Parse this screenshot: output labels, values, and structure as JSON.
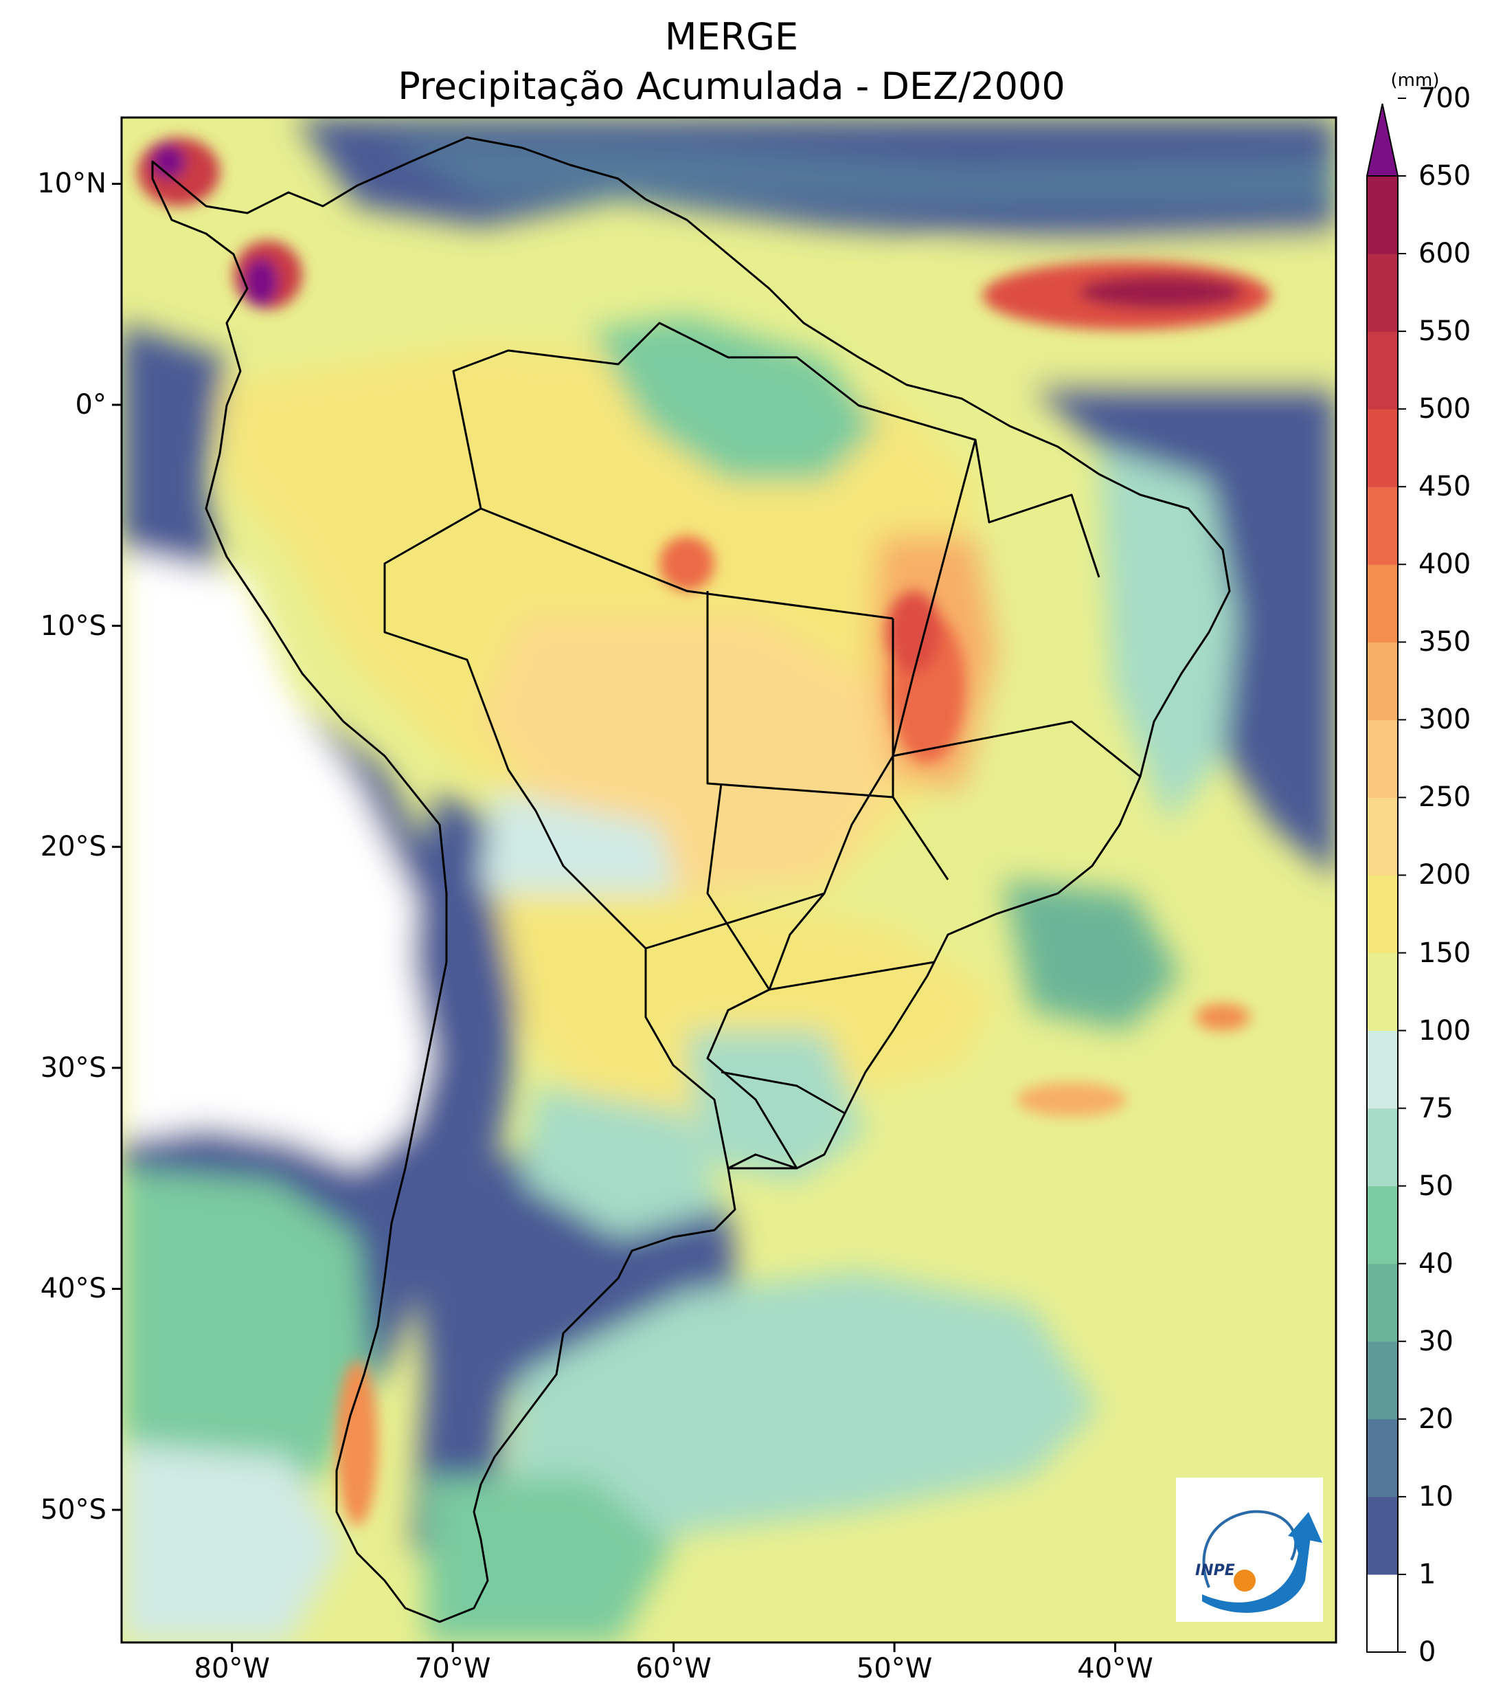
{
  "title": {
    "line1": "MERGE",
    "line2": "Precipitação Acumulada - DEZ/2000"
  },
  "map": {
    "lon_ticks": [
      "80°W",
      "70°W",
      "60°W",
      "50°W",
      "40°W"
    ],
    "lat_ticks": [
      "10°N",
      "0°",
      "10°S",
      "20°S",
      "30°S",
      "40°S",
      "50°S"
    ],
    "lon_values": [
      -80,
      -70,
      -60,
      -50,
      -40
    ],
    "lat_values": [
      10,
      0,
      -10,
      -20,
      -30,
      -40,
      -50
    ],
    "extent": {
      "lon": [
        -85,
        -30
      ],
      "lat": [
        -56,
        13
      ]
    }
  },
  "logo": {
    "text": "INPE"
  },
  "colorbar": {
    "unit": "(mm)",
    "labels": [
      "0",
      "1",
      "10",
      "20",
      "30",
      "40",
      "50",
      "75",
      "100",
      "150",
      "200",
      "250",
      "300",
      "350",
      "400",
      "450",
      "500",
      "550",
      "600",
      "650",
      "700"
    ],
    "colors": [
      "#ffffff",
      "#4a5a94",
      "#53789a",
      "#5e9a98",
      "#6ab597",
      "#7acb9f",
      "#a6dcc6",
      "#d0eae4",
      "#e8ef8f",
      "#f5e67a",
      "#fbd98a",
      "#f9c77e",
      "#f7ae66",
      "#f38e4f",
      "#ec6a47",
      "#de4d42",
      "#c93a44",
      "#b32a45",
      "#9c1a48"
    ],
    "extend_color": "#7a0f86"
  }
}
